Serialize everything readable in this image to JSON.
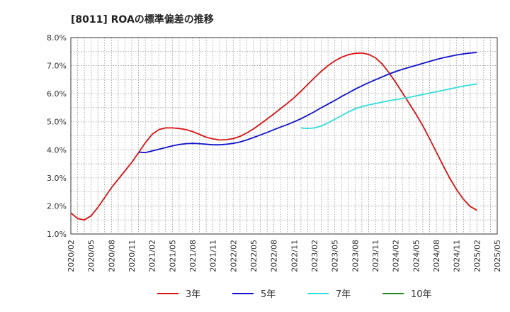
{
  "chart_data": {
    "type": "line",
    "title": "[8011]  ROAの標準偏差の推移",
    "xlabel": "",
    "ylabel": "",
    "ylim": [
      1.0,
      8.0
    ],
    "yticks": [
      "1.0%",
      "2.0%",
      "3.0%",
      "4.0%",
      "5.0%",
      "6.0%",
      "7.0%",
      "8.0%"
    ],
    "xticks": [
      "2020/02",
      "2020/05",
      "2020/08",
      "2020/11",
      "2021/02",
      "2021/05",
      "2021/08",
      "2021/11",
      "2022/02",
      "2022/05",
      "2022/08",
      "2022/11",
      "2023/02",
      "2023/05",
      "2023/08",
      "2023/11",
      "2024/02",
      "2024/05",
      "2024/08",
      "2024/11",
      "2025/02",
      "2025/05"
    ],
    "grid": true,
    "legend_position": "bottom",
    "series": [
      {
        "name": "3年",
        "color": "#dd1111",
        "points": [
          [
            "2020/02",
            1.75
          ],
          [
            "2020/03",
            1.55
          ],
          [
            "2020/04",
            1.5
          ],
          [
            "2020/05",
            1.65
          ],
          [
            "2020/06",
            1.95
          ],
          [
            "2020/07",
            2.3
          ],
          [
            "2020/08",
            2.65
          ],
          [
            "2020/09",
            2.95
          ],
          [
            "2020/10",
            3.25
          ],
          [
            "2020/11",
            3.55
          ],
          [
            "2020/12",
            3.9
          ],
          [
            "2021/01",
            4.25
          ],
          [
            "2021/02",
            4.55
          ],
          [
            "2021/03",
            4.72
          ],
          [
            "2021/04",
            4.78
          ],
          [
            "2021/05",
            4.78
          ],
          [
            "2021/06",
            4.76
          ],
          [
            "2021/07",
            4.72
          ],
          [
            "2021/08",
            4.65
          ],
          [
            "2021/09",
            4.55
          ],
          [
            "2021/10",
            4.45
          ],
          [
            "2021/11",
            4.39
          ],
          [
            "2021/12",
            4.35
          ],
          [
            "2022/01",
            4.36
          ],
          [
            "2022/02",
            4.4
          ],
          [
            "2022/03",
            4.48
          ],
          [
            "2022/04",
            4.6
          ],
          [
            "2022/05",
            4.75
          ],
          [
            "2022/06",
            4.92
          ],
          [
            "2022/07",
            5.1
          ],
          [
            "2022/08",
            5.28
          ],
          [
            "2022/09",
            5.47
          ],
          [
            "2022/10",
            5.66
          ],
          [
            "2022/11",
            5.86
          ],
          [
            "2022/12",
            6.09
          ],
          [
            "2023/01",
            6.33
          ],
          [
            "2023/02",
            6.57
          ],
          [
            "2023/03",
            6.8
          ],
          [
            "2023/04",
            7.0
          ],
          [
            "2023/05",
            7.17
          ],
          [
            "2023/06",
            7.3
          ],
          [
            "2023/07",
            7.39
          ],
          [
            "2023/08",
            7.44
          ],
          [
            "2023/09",
            7.45
          ],
          [
            "2023/10",
            7.4
          ],
          [
            "2023/11",
            7.28
          ],
          [
            "2023/12",
            7.06
          ],
          [
            "2024/01",
            6.75
          ],
          [
            "2024/02",
            6.4
          ],
          [
            "2024/03",
            6.03
          ],
          [
            "2024/04",
            5.65
          ],
          [
            "2024/05",
            5.27
          ],
          [
            "2024/06",
            4.86
          ],
          [
            "2024/07",
            4.4
          ],
          [
            "2024/08",
            3.92
          ],
          [
            "2024/09",
            3.44
          ],
          [
            "2024/10",
            2.98
          ],
          [
            "2024/11",
            2.58
          ],
          [
            "2024/12",
            2.24
          ],
          [
            "2025/01",
            1.98
          ],
          [
            "2025/02",
            1.85
          ]
        ]
      },
      {
        "name": "5年",
        "color": "#1111cc",
        "points": [
          [
            "2020/12",
            3.92
          ],
          [
            "2021/01",
            3.9
          ],
          [
            "2021/02",
            3.96
          ],
          [
            "2021/03",
            4.02
          ],
          [
            "2021/04",
            4.08
          ],
          [
            "2021/05",
            4.14
          ],
          [
            "2021/06",
            4.19
          ],
          [
            "2021/07",
            4.22
          ],
          [
            "2021/08",
            4.23
          ],
          [
            "2021/09",
            4.22
          ],
          [
            "2021/10",
            4.2
          ],
          [
            "2021/11",
            4.18
          ],
          [
            "2021/12",
            4.18
          ],
          [
            "2022/01",
            4.2
          ],
          [
            "2022/02",
            4.23
          ],
          [
            "2022/03",
            4.28
          ],
          [
            "2022/04",
            4.35
          ],
          [
            "2022/05",
            4.44
          ],
          [
            "2022/06",
            4.53
          ],
          [
            "2022/07",
            4.62
          ],
          [
            "2022/08",
            4.72
          ],
          [
            "2022/09",
            4.81
          ],
          [
            "2022/10",
            4.9
          ],
          [
            "2022/11",
            5.0
          ],
          [
            "2022/12",
            5.11
          ],
          [
            "2023/01",
            5.23
          ],
          [
            "2023/02",
            5.36
          ],
          [
            "2023/03",
            5.5
          ],
          [
            "2023/04",
            5.63
          ],
          [
            "2023/05",
            5.76
          ],
          [
            "2023/06",
            5.9
          ],
          [
            "2023/07",
            6.03
          ],
          [
            "2023/08",
            6.16
          ],
          [
            "2023/09",
            6.28
          ],
          [
            "2023/10",
            6.39
          ],
          [
            "2023/11",
            6.5
          ],
          [
            "2023/12",
            6.6
          ],
          [
            "2024/01",
            6.7
          ],
          [
            "2024/02",
            6.79
          ],
          [
            "2024/03",
            6.87
          ],
          [
            "2024/04",
            6.94
          ],
          [
            "2024/05",
            7.01
          ],
          [
            "2024/06",
            7.08
          ],
          [
            "2024/07",
            7.15
          ],
          [
            "2024/08",
            7.22
          ],
          [
            "2024/09",
            7.28
          ],
          [
            "2024/10",
            7.33
          ],
          [
            "2024/11",
            7.38
          ],
          [
            "2024/12",
            7.42
          ],
          [
            "2025/01",
            7.45
          ],
          [
            "2025/02",
            7.47
          ]
        ]
      },
      {
        "name": "7年",
        "color": "#33dddd",
        "points": [
          [
            "2022/12",
            4.78
          ],
          [
            "2023/01",
            4.76
          ],
          [
            "2023/02",
            4.78
          ],
          [
            "2023/03",
            4.85
          ],
          [
            "2023/04",
            4.96
          ],
          [
            "2023/05",
            5.09
          ],
          [
            "2023/06",
            5.22
          ],
          [
            "2023/07",
            5.35
          ],
          [
            "2023/08",
            5.46
          ],
          [
            "2023/09",
            5.54
          ],
          [
            "2023/10",
            5.6
          ],
          [
            "2023/11",
            5.65
          ],
          [
            "2023/12",
            5.7
          ],
          [
            "2024/01",
            5.75
          ],
          [
            "2024/02",
            5.79
          ],
          [
            "2024/03",
            5.83
          ],
          [
            "2024/04",
            5.87
          ],
          [
            "2024/05",
            5.92
          ],
          [
            "2024/06",
            5.97
          ],
          [
            "2024/07",
            6.02
          ],
          [
            "2024/08",
            6.07
          ],
          [
            "2024/09",
            6.12
          ],
          [
            "2024/10",
            6.17
          ],
          [
            "2024/11",
            6.22
          ],
          [
            "2024/12",
            6.27
          ],
          [
            "2025/01",
            6.31
          ],
          [
            "2025/02",
            6.35
          ]
        ]
      },
      {
        "name": "10年",
        "color": "#228822",
        "points": []
      }
    ]
  }
}
